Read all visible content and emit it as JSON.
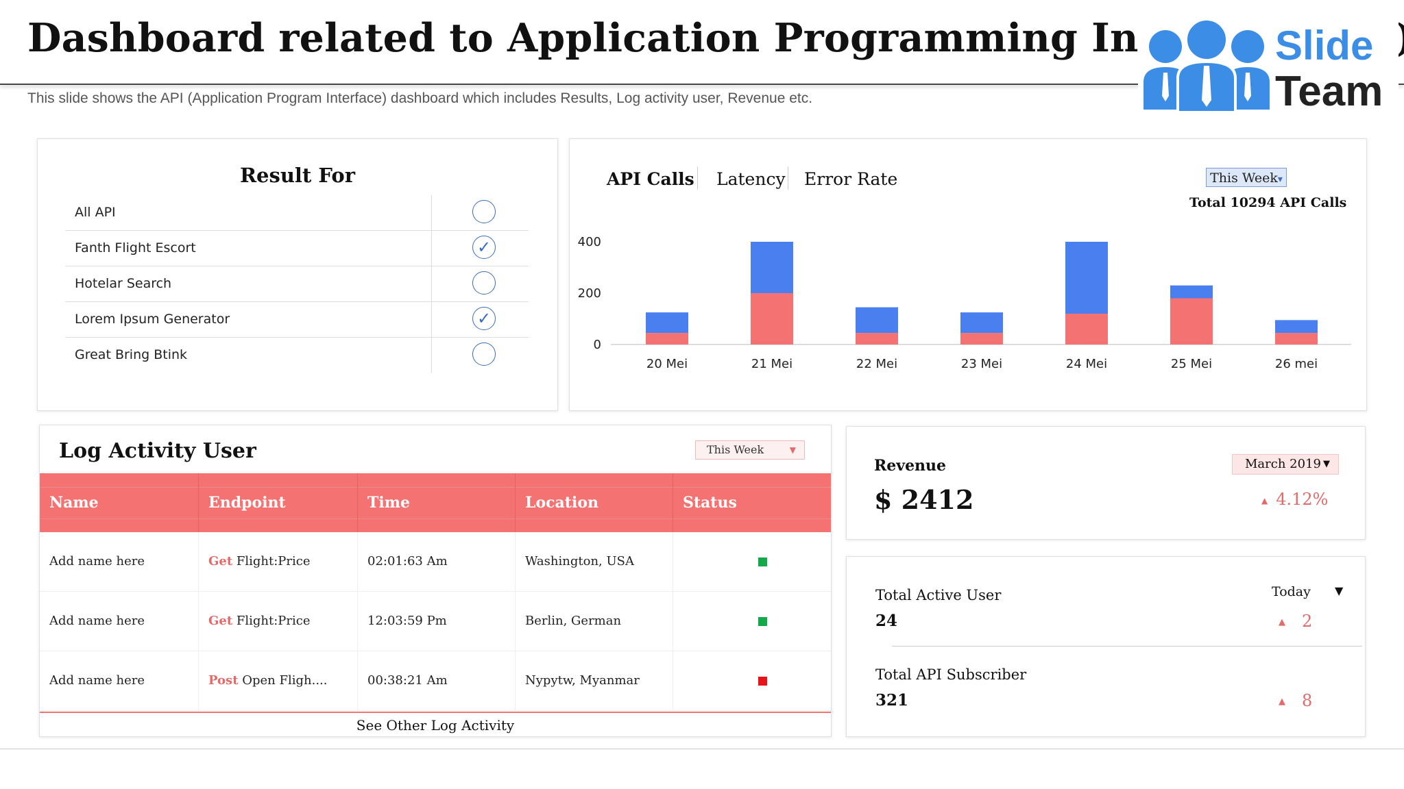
{
  "header": {
    "title": "Dashboard related to Application Programming Interface (3/3)",
    "subtitle": "This slide shows the API (Application Program Interface) dashboard which includes Results, Log activity user, Revenue etc.",
    "logo_word1": "Slide",
    "logo_word2": "Team",
    "logo_color": "#3b8de6"
  },
  "result_for": {
    "title": "Result For",
    "items": [
      {
        "label": "All API",
        "checked": false
      },
      {
        "label": "Fanth Flight Escort",
        "checked": true
      },
      {
        "label": "Hotelar Search",
        "checked": false
      },
      {
        "label": "Lorem Ipsum Generator",
        "checked": true
      },
      {
        "label": "Great Bring Btink",
        "checked": false
      }
    ],
    "check_glyph": "✓"
  },
  "api_chart": {
    "tabs": [
      "API Calls",
      "Latency",
      "Error Rate"
    ],
    "active_tab": "API Calls",
    "period": "This Week",
    "period_arrow": "▾",
    "total_label": "Total 10294 API Calls"
  },
  "chart_data": {
    "type": "bar",
    "stacked": true,
    "categories": [
      "20 Mei",
      "21 Mei",
      "22 Mei",
      "23 Mei",
      "24 Mei",
      "25 Mei",
      "26 mei"
    ],
    "series": [
      {
        "color": "#f57272",
        "values": [
          45,
          200,
          45,
          45,
          120,
          180,
          45
        ]
      },
      {
        "color": "#4a7ff0",
        "values": [
          80,
          200,
          100,
          80,
          280,
          50,
          50
        ]
      }
    ],
    "yticks": [
      0,
      200,
      400
    ],
    "ylim": [
      0,
      400
    ],
    "grid": false
  },
  "log_activity": {
    "title": "Log Activity User",
    "period": "This Week",
    "period_arrow": "▼",
    "columns": [
      "Name",
      "Endpoint",
      "Time",
      "Location",
      "Status"
    ],
    "rows": [
      {
        "name": "Add name here",
        "method": "Get",
        "endpoint": "Flight:Price",
        "time": "02:01:63 Am",
        "location": "Washington, USA",
        "status_color": "#13a84a"
      },
      {
        "name": "Add name here",
        "method": "Get",
        "endpoint": "Flight:Price",
        "time": "12:03:59 Pm",
        "location": "Berlin, German",
        "status_color": "#13a84a"
      },
      {
        "name": "Add name here",
        "method": "Post",
        "endpoint": "Open Fligh....",
        "time": "00:38:21 Am",
        "location": "Nypytw, Myanmar",
        "status_color": "#e8121a"
      }
    ],
    "footer": "See Other Log Activity"
  },
  "revenue": {
    "label": "Revenue",
    "value": "$ 2412",
    "period": "March 2019",
    "period_arrow": "▼",
    "change": "4.12%",
    "change_arrow": "▲"
  },
  "users": {
    "period": "Today",
    "period_arrow": "▼",
    "active_label": "Total Active User",
    "active_value": "24",
    "active_change": "2",
    "subscriber_label": "Total API Subscriber",
    "subscriber_value": "321",
    "subscriber_change": "8",
    "change_arrow": "▲"
  }
}
